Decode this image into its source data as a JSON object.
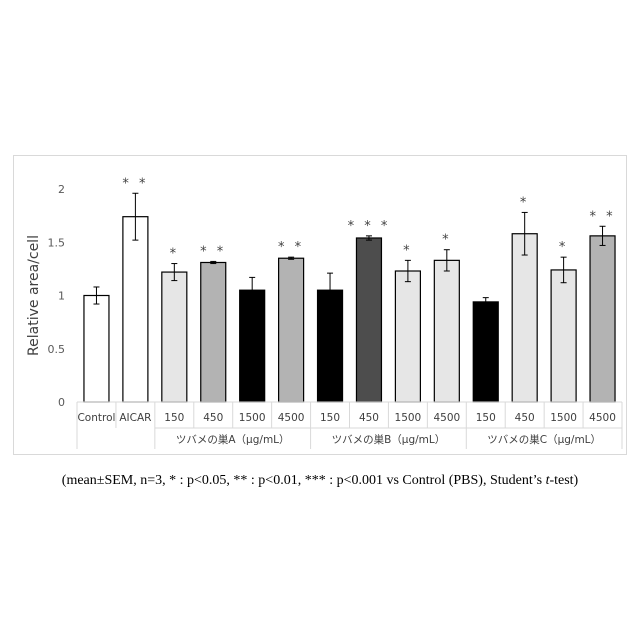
{
  "chart_data": {
    "type": "bar",
    "ylabel": "Relative area/cell",
    "ylim": [
      0,
      2
    ],
    "yticks": [
      0,
      0.5,
      1,
      1.5,
      2
    ],
    "ytick_labels": [
      "0",
      "0.5",
      "1",
      "1.5",
      "2"
    ],
    "grid": false,
    "categories": [
      "Control",
      "AICAR",
      "150",
      "450",
      "1500",
      "4500",
      "150",
      "450",
      "1500",
      "4500",
      "150",
      "450",
      "1500",
      "4500"
    ],
    "values": [
      1.0,
      1.74,
      1.22,
      1.31,
      1.05,
      1.35,
      1.05,
      1.54,
      1.23,
      1.33,
      0.94,
      1.58,
      1.24,
      1.56
    ],
    "errors": [
      0.08,
      0.22,
      0.08,
      0.01,
      0.12,
      0.01,
      0.16,
      0.02,
      0.1,
      0.1,
      0.04,
      0.2,
      0.12,
      0.09
    ],
    "significance": [
      "",
      "**",
      "*",
      "**",
      "",
      "**",
      "",
      "***",
      "*",
      "*",
      "",
      "*",
      "*",
      "**"
    ],
    "colors": [
      "#ffffff",
      "#ffffff",
      "#e6e6e6",
      "#b3b3b3",
      "#000000",
      "#b3b3b3",
      "#000000",
      "#4d4d4d",
      "#e6e6e6",
      "#e6e6e6",
      "#000000",
      "#e6e6e6",
      "#e6e6e6",
      "#b3b3b3"
    ],
    "groups": [
      {
        "label": "ツバメの巣A（μg/mL）",
        "start": 2,
        "end": 5
      },
      {
        "label": "ツバメの巣B（μg/mL）",
        "start": 6,
        "end": 9
      },
      {
        "label": "ツバメの巣C（μg/mL）",
        "start": 10,
        "end": 13
      }
    ]
  },
  "footnote": {
    "part1": "(mean±SEM, n=3, * : p<0.05, ** : p<0.01, *** : p<0.001 vs Control (PBS), Student’s ",
    "italic": "t",
    "part2": "-test)"
  }
}
